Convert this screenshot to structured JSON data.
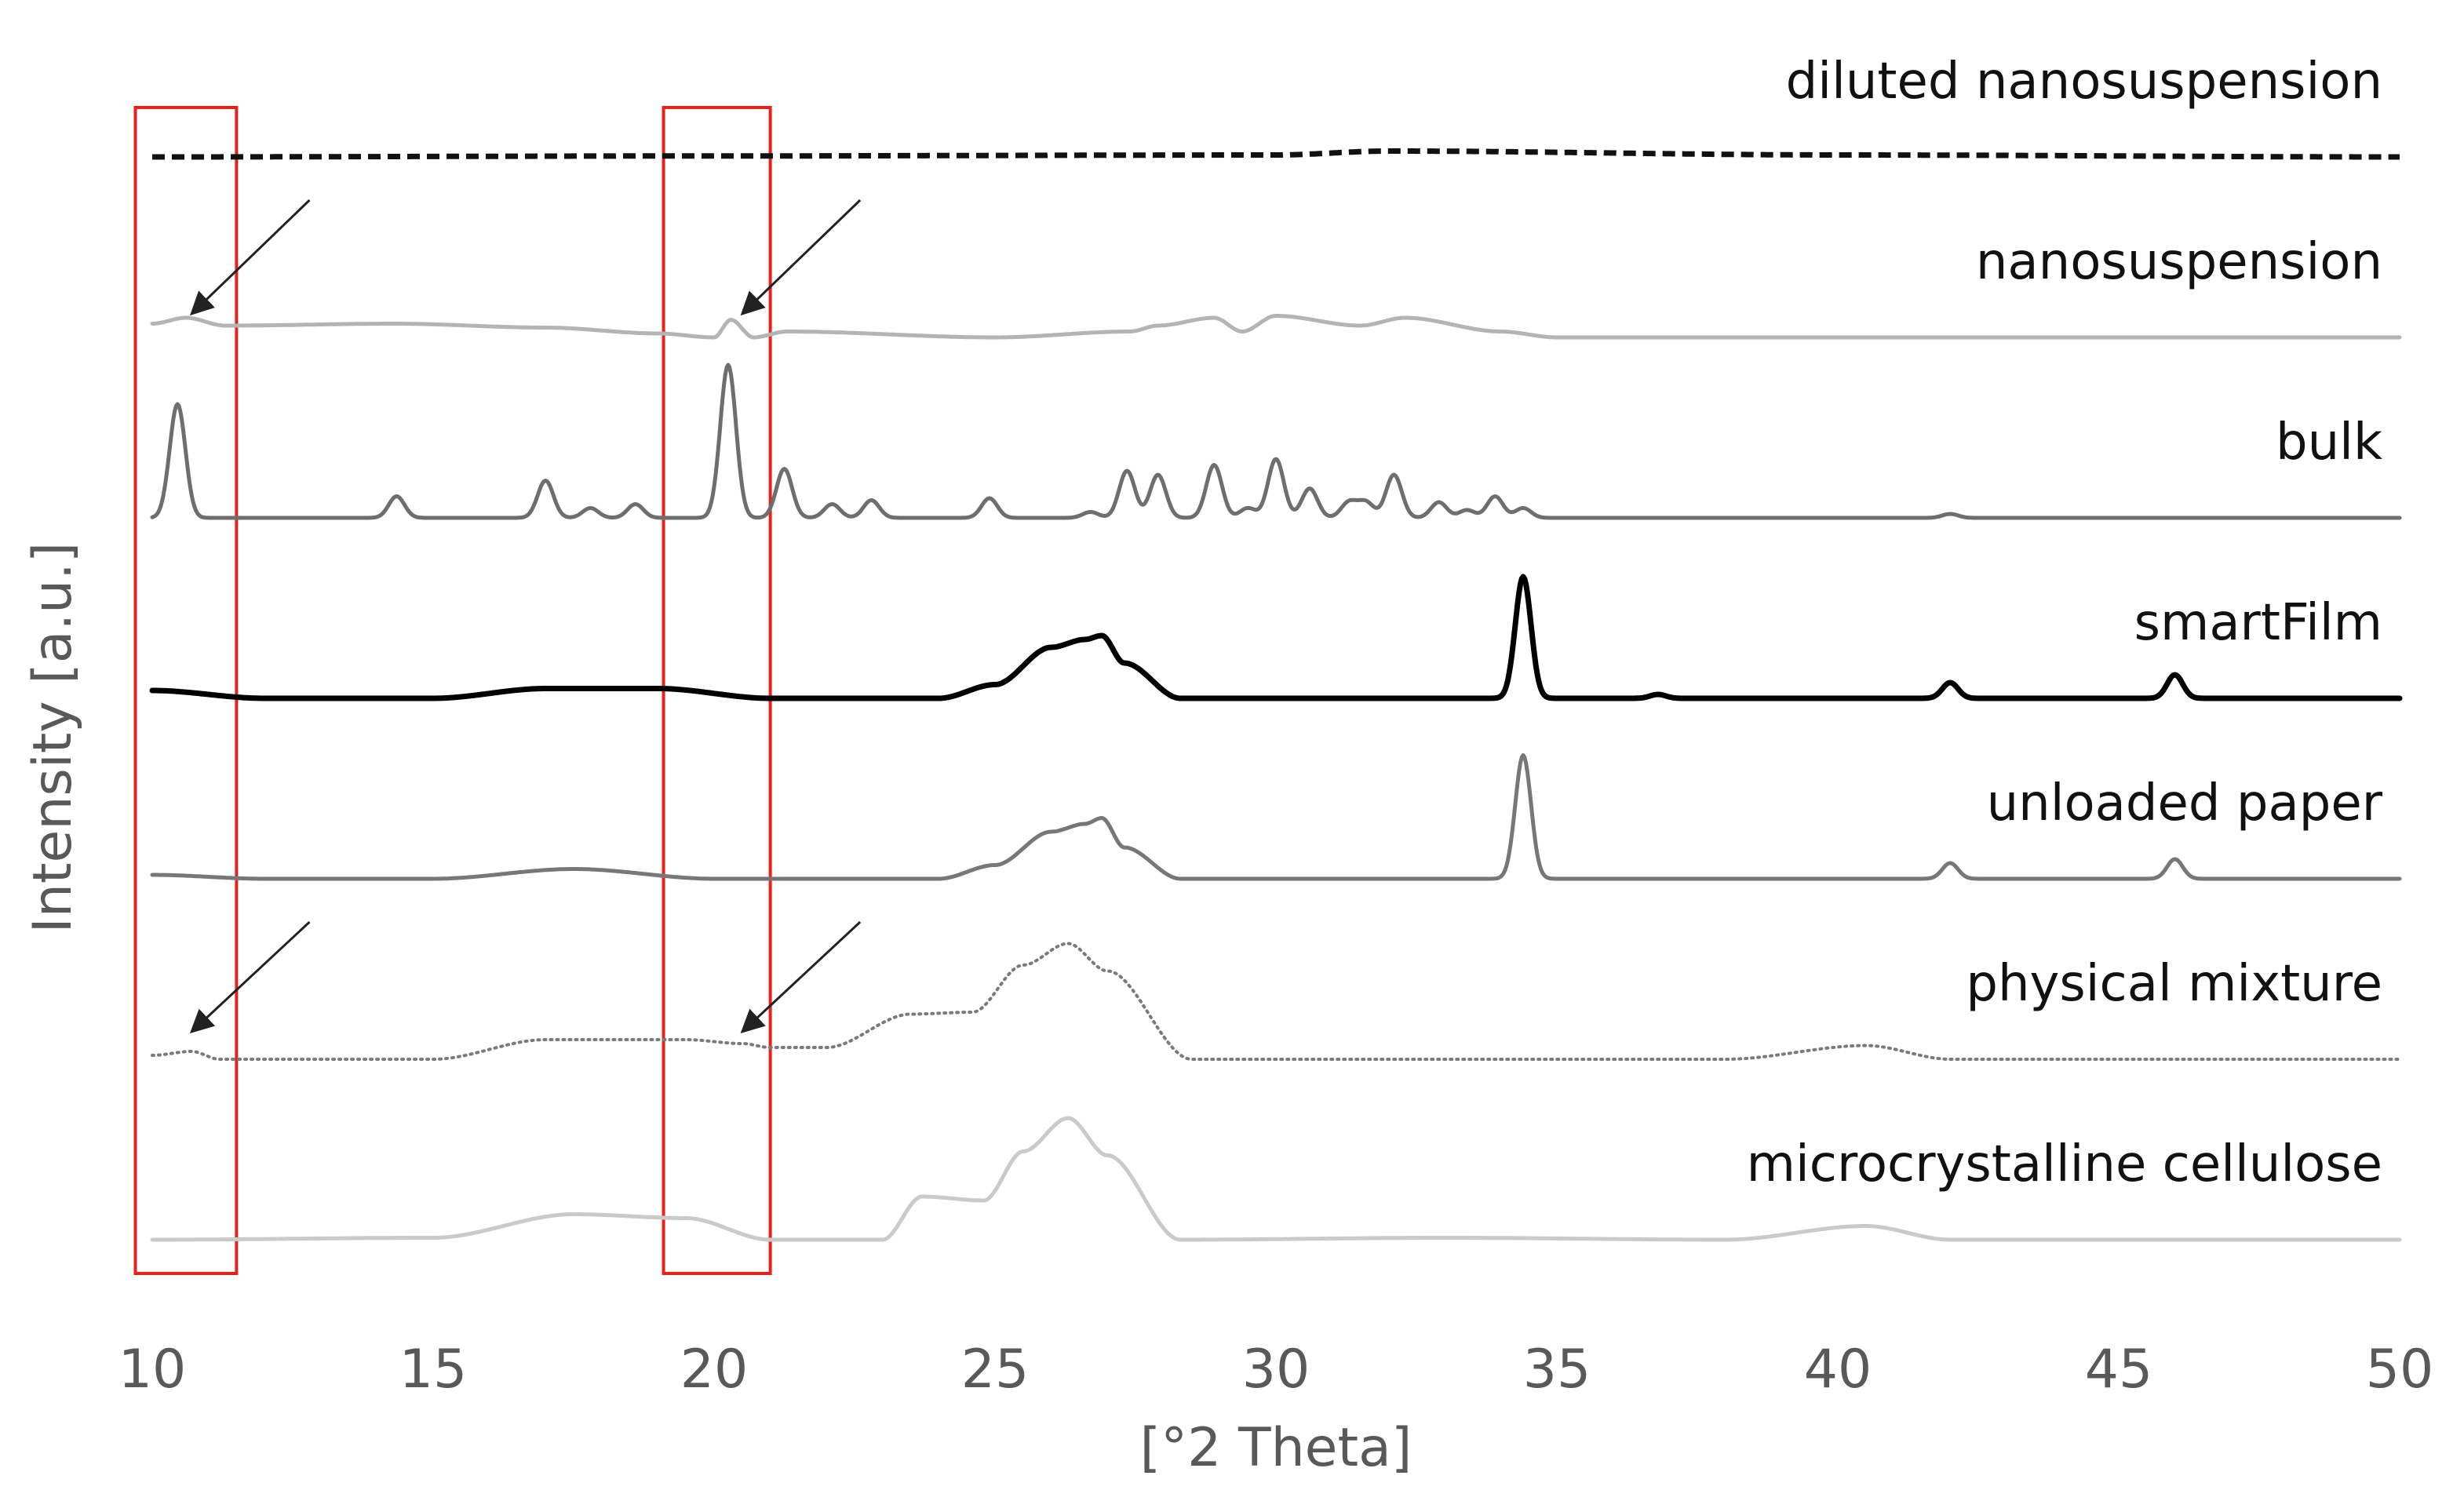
{
  "chart_data": {
    "type": "line",
    "title": "",
    "xlabel": "[°2 Theta]",
    "ylabel": "Intensity [a.u.]",
    "xlim": [
      10,
      50
    ],
    "x_ticks": [
      10,
      15,
      20,
      25,
      30,
      35,
      40,
      45,
      50
    ],
    "y_ticks": [],
    "grid": false,
    "legend": "labels placed at the right end above each trace",
    "series": [
      {
        "name": "diluted nanosuspension",
        "color": "#111111",
        "style": "dashed",
        "offset": 6,
        "baseline": 0.0,
        "points": [
          [
            10,
            0
          ],
          [
            20,
            0.005
          ],
          [
            30,
            0.01
          ],
          [
            32,
            0.03
          ],
          [
            40,
            0.01
          ],
          [
            50,
            0
          ]
        ]
      },
      {
        "name": "nanosuspension",
        "color": "#b4b4b4",
        "style": "solid",
        "offset": 5,
        "baseline": 0.07,
        "points": [
          [
            10,
            0.07
          ],
          [
            10.6,
            0.1
          ],
          [
            11.3,
            0.06
          ],
          [
            14.3,
            0.07
          ],
          [
            17,
            0.05
          ],
          [
            19,
            0.02
          ],
          [
            20,
            0
          ],
          [
            20.3,
            0.09
          ],
          [
            20.7,
            0
          ],
          [
            21.3,
            0.03
          ],
          [
            25,
            0
          ],
          [
            27.4,
            0.03
          ],
          [
            27.9,
            0.06
          ],
          [
            28.9,
            0.1
          ],
          [
            29.4,
            0.03
          ],
          [
            30,
            0.11
          ],
          [
            31.5,
            0.06
          ],
          [
            32.3,
            0.1
          ],
          [
            34,
            0.03
          ],
          [
            35,
            0
          ],
          [
            50,
            0
          ]
        ]
      },
      {
        "name": "bulk",
        "color": "#6e6e6e",
        "style": "solid",
        "offset": 4,
        "baseline": 0.0,
        "peaks": [
          [
            10.45,
            0.58
          ],
          [
            14.35,
            0.11
          ],
          [
            17.0,
            0.19
          ],
          [
            17.8,
            0.05
          ],
          [
            18.6,
            0.07
          ],
          [
            20.25,
            0.78
          ],
          [
            21.25,
            0.25
          ],
          [
            22.1,
            0.07
          ],
          [
            22.8,
            0.09
          ],
          [
            24.9,
            0.1
          ],
          [
            26.7,
            0.03
          ],
          [
            27.35,
            0.24
          ],
          [
            27.9,
            0.22
          ],
          [
            28.9,
            0.27
          ],
          [
            29.5,
            0.05
          ],
          [
            30.0,
            0.3
          ],
          [
            30.6,
            0.15
          ],
          [
            31.3,
            0.08
          ],
          [
            31.6,
            0.08
          ],
          [
            32.1,
            0.22
          ],
          [
            32.9,
            0.08
          ],
          [
            33.4,
            0.04
          ],
          [
            33.9,
            0.11
          ],
          [
            34.4,
            0.05
          ],
          [
            42.0,
            0.02
          ]
        ]
      },
      {
        "name": "smartFilm",
        "color": "#000000",
        "style": "solid",
        "offset": 3,
        "baseline": 0.0,
        "points": [
          [
            10,
            0.04
          ],
          [
            12,
            0.0
          ],
          [
            15,
            0.0
          ],
          [
            17,
            0.05
          ],
          [
            19,
            0.05
          ],
          [
            21,
            0.0
          ],
          [
            24,
            0.0
          ],
          [
            25,
            0.07
          ],
          [
            26,
            0.26
          ],
          [
            26.6,
            0.3
          ],
          [
            26.9,
            0.32
          ],
          [
            27.3,
            0.18
          ],
          [
            28.3,
            0.0
          ],
          [
            50,
            0.0
          ]
        ],
        "peaks": [
          [
            34.4,
            0.62
          ],
          [
            42.0,
            0.08
          ],
          [
            46.0,
            0.12
          ],
          [
            36.8,
            0.02
          ]
        ]
      },
      {
        "name": "unloaded paper",
        "color": "#777777",
        "style": "solid",
        "offset": 2,
        "baseline": 0.0,
        "points": [
          [
            10,
            0.02
          ],
          [
            12,
            0.0
          ],
          [
            15,
            0.0
          ],
          [
            17.5,
            0.05
          ],
          [
            20,
            0.0
          ],
          [
            24,
            0.0
          ],
          [
            25,
            0.07
          ],
          [
            26,
            0.24
          ],
          [
            26.6,
            0.28
          ],
          [
            26.9,
            0.31
          ],
          [
            27.3,
            0.16
          ],
          [
            28.3,
            0.0
          ],
          [
            50,
            0.0
          ]
        ],
        "peaks": [
          [
            34.4,
            0.63
          ],
          [
            42.0,
            0.08
          ],
          [
            46.0,
            0.1
          ]
        ]
      },
      {
        "name": "physical mixture",
        "color": "#7a7a7a",
        "style": "dotted",
        "offset": 1,
        "baseline": 0.0,
        "points": [
          [
            10,
            0.02
          ],
          [
            10.7,
            0.04
          ],
          [
            11.2,
            0.0
          ],
          [
            15,
            0.0
          ],
          [
            17,
            0.1
          ],
          [
            19.5,
            0.1
          ],
          [
            20.5,
            0.08
          ],
          [
            21,
            0.06
          ],
          [
            22,
            0.06
          ],
          [
            23.5,
            0.23
          ],
          [
            24.6,
            0.24
          ],
          [
            25.5,
            0.48
          ],
          [
            26.3,
            0.59
          ],
          [
            27,
            0.45
          ],
          [
            28.5,
            0.0
          ],
          [
            38,
            0.0
          ],
          [
            40.5,
            0.07
          ],
          [
            42,
            0.0
          ],
          [
            50,
            0.0
          ]
        ]
      },
      {
        "name": "microcrystalline cellulose",
        "color": "#cacaca",
        "style": "solid",
        "offset": 0,
        "baseline": 0.0,
        "points": [
          [
            10,
            0
          ],
          [
            15,
            0.01
          ],
          [
            17.5,
            0.13
          ],
          [
            19.5,
            0.11
          ],
          [
            21,
            0.0
          ],
          [
            23,
            0.0
          ],
          [
            23.7,
            0.22
          ],
          [
            24.8,
            0.2
          ],
          [
            25.5,
            0.45
          ],
          [
            26.3,
            0.62
          ],
          [
            27,
            0.43
          ],
          [
            28.3,
            0.0
          ],
          [
            33,
            0.01
          ],
          [
            38,
            0.0
          ],
          [
            40.5,
            0.07
          ],
          [
            42,
            0.0
          ],
          [
            50,
            0.0
          ]
        ]
      }
    ],
    "highlight_boxes": [
      {
        "x_range": [
          9.7,
          11.5
        ]
      },
      {
        "x_range": [
          19.1,
          21.0
        ]
      }
    ],
    "arrows": [
      {
        "series": "nanosuspension",
        "from": [
          12.8,
          0.7
        ],
        "to": [
          10.7,
          0.12
        ]
      },
      {
        "series": "nanosuspension",
        "from": [
          22.6,
          0.7
        ],
        "to": [
          20.5,
          0.12
        ]
      },
      {
        "series": "physical mixture",
        "from": [
          12.8,
          0.7
        ],
        "to": [
          10.7,
          0.14
        ]
      },
      {
        "series": "physical mixture",
        "from": [
          22.6,
          0.7
        ],
        "to": [
          20.5,
          0.14
        ]
      }
    ],
    "colors": {
      "axis_text": "#595959",
      "label_text": "#111111",
      "box": "#e8211c",
      "arrow": "#222222"
    }
  }
}
